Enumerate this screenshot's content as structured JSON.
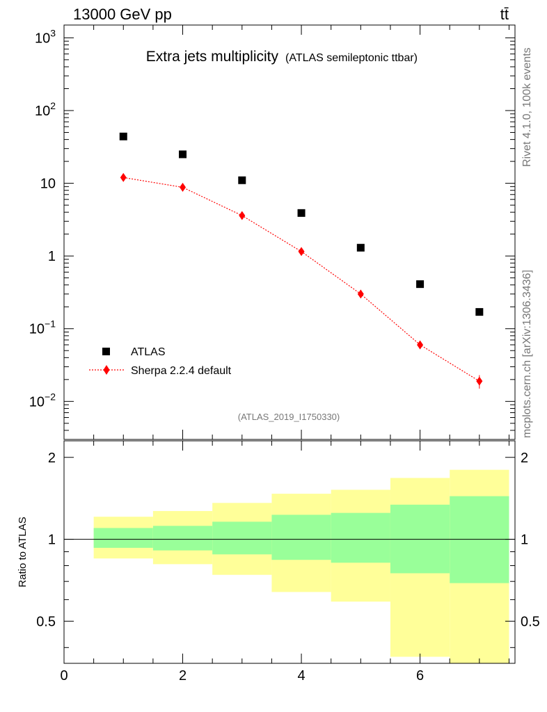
{
  "header": {
    "energy": "13000 GeV pp",
    "process": "tt̄"
  },
  "side": {
    "rivet": "Rivet 4.1.0,  100k events",
    "source": "mcplots.cern.ch [arXiv:1306.3436]"
  },
  "chart_data": [
    {
      "type": "scatter",
      "title": "Extra jets multiplicity",
      "subtitle": "(ATLAS semileptonic ttbar)",
      "watermark": "(ATLAS_2019_I1750330)",
      "xlim": [
        0,
        7.6
      ],
      "ylim": [
        0.003,
        1500
      ],
      "yscale": "log",
      "ytick_values": [
        0.01,
        0.1,
        1,
        10,
        100,
        1000
      ],
      "ytick_labels": [
        {
          "base": "10",
          "exp": "−2"
        },
        {
          "base": "10",
          "exp": "−1"
        },
        {
          "base": "1",
          "exp": ""
        },
        {
          "base": "10",
          "exp": ""
        },
        {
          "base": "10",
          "exp": "2"
        },
        {
          "base": "10",
          "exp": "3"
        }
      ],
      "legend_position": "bottom-left",
      "series": [
        {
          "name": "ATLAS",
          "marker": "square",
          "color": "#000000",
          "x": [
            1,
            2,
            3,
            4,
            5,
            6,
            7
          ],
          "y": [
            44,
            25,
            11,
            3.9,
            1.3,
            0.41,
            0.17
          ]
        },
        {
          "name": "Sherpa 2.2.4 default",
          "marker": "diamond",
          "line": "dotted",
          "color": "#ff0000",
          "x": [
            1,
            2,
            3,
            4,
            5,
            6,
            7
          ],
          "y": [
            12,
            8.8,
            3.6,
            1.15,
            0.3,
            0.06,
            0.019
          ],
          "err": [
            0.4,
            0.3,
            0.12,
            0.04,
            0.015,
            0.007,
            0.004
          ]
        }
      ]
    },
    {
      "type": "area",
      "ylabel": "Ratio to ATLAS",
      "xlim": [
        0,
        7.6
      ],
      "ylim": [
        0.35,
        2.3
      ],
      "yscale": "log",
      "reference_line": 1,
      "xtick_labels": [
        "0",
        "2",
        "4",
        "6"
      ],
      "xtick_values": [
        0,
        2,
        4,
        6
      ],
      "ytick_labels": [
        "0.5",
        "1",
        "2"
      ],
      "ytick_values": [
        0.5,
        1,
        2
      ],
      "bands": {
        "bin_edges": [
          0.5,
          1.5,
          2.5,
          3.5,
          4.5,
          5.5,
          6.5,
          7.5
        ],
        "inner_color": "#99ff99",
        "outer_color": "#ffff99",
        "inner_low": [
          0.93,
          0.91,
          0.88,
          0.84,
          0.82,
          0.75,
          0.69
        ],
        "inner_high": [
          1.1,
          1.12,
          1.16,
          1.23,
          1.25,
          1.34,
          1.44
        ],
        "outer_low": [
          0.85,
          0.81,
          0.74,
          0.64,
          0.59,
          0.37,
          0.33
        ],
        "outer_high": [
          1.21,
          1.27,
          1.36,
          1.47,
          1.52,
          1.68,
          1.8
        ]
      }
    }
  ]
}
